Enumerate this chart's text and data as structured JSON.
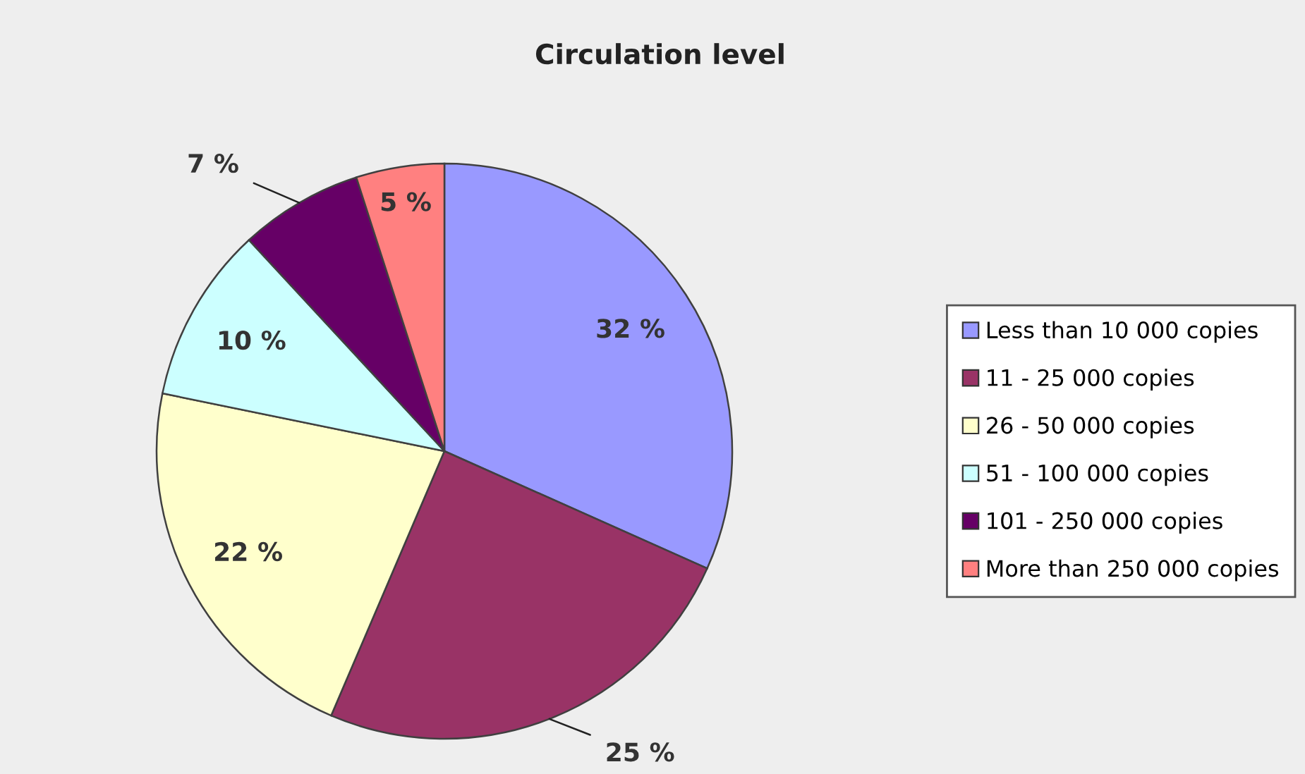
{
  "chart_data": {
    "type": "pie",
    "title": "Circulation level",
    "categories": [
      "Less than 10 000 copies",
      "11 - 25 000 copies",
      "26 - 50 000 copies",
      "51 - 100 000 copies",
      "101 - 250 000 copies",
      "More than 250 000 copies"
    ],
    "values": [
      32,
      25,
      22,
      10,
      7,
      5
    ],
    "colors": [
      "#9999ff",
      "#993366",
      "#ffffcc",
      "#ccffff",
      "#660066",
      "#ff8080"
    ],
    "value_labels": [
      "32 %",
      "25 %",
      "22 %",
      "10 %",
      "7 %",
      "5 %"
    ],
    "legend": "right"
  }
}
